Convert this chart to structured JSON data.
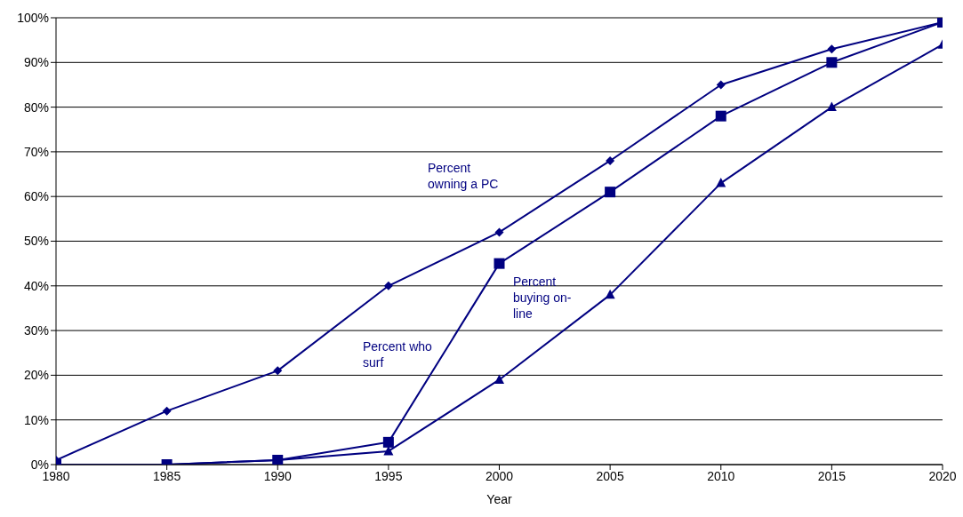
{
  "chart_data": {
    "type": "line",
    "xlabel": "Year",
    "x": [
      1980,
      1985,
      1990,
      1995,
      2000,
      2005,
      2010,
      2015,
      2020
    ],
    "series": [
      {
        "name": "Percent owning a PC",
        "color": "#000080",
        "marker": "diamond",
        "values": [
          1,
          12,
          21,
          40,
          52,
          68,
          85,
          93,
          99
        ]
      },
      {
        "name": "Percent who surf",
        "color": "#000080",
        "marker": "square",
        "values": [
          0,
          0,
          1,
          5,
          45,
          61,
          78,
          90,
          99
        ]
      },
      {
        "name": "Percent buying on-line",
        "color": "#000080",
        "marker": "triangle",
        "values": [
          0,
          0,
          1,
          3,
          19,
          38,
          63,
          80,
          94
        ]
      }
    ],
    "xlim": [
      1980,
      2020
    ],
    "xticks": [
      1980,
      1985,
      1990,
      1995,
      2000,
      2005,
      2010,
      2015,
      2020
    ],
    "ylim": [
      0,
      100
    ],
    "yticks": [
      {
        "value": 0,
        "label": "0%"
      },
      {
        "value": 10,
        "label": "10%"
      },
      {
        "value": 20,
        "label": "20%"
      },
      {
        "value": 30,
        "label": "30%"
      },
      {
        "value": 40,
        "label": "40%"
      },
      {
        "value": 50,
        "label": "50%"
      },
      {
        "value": 60,
        "label": "60%"
      },
      {
        "value": 70,
        "label": "70%"
      },
      {
        "value": 80,
        "label": "80%"
      },
      {
        "value": 90,
        "label": "90%"
      },
      {
        "value": 100,
        "label": "100%"
      }
    ],
    "grid": "y",
    "legend": false
  }
}
